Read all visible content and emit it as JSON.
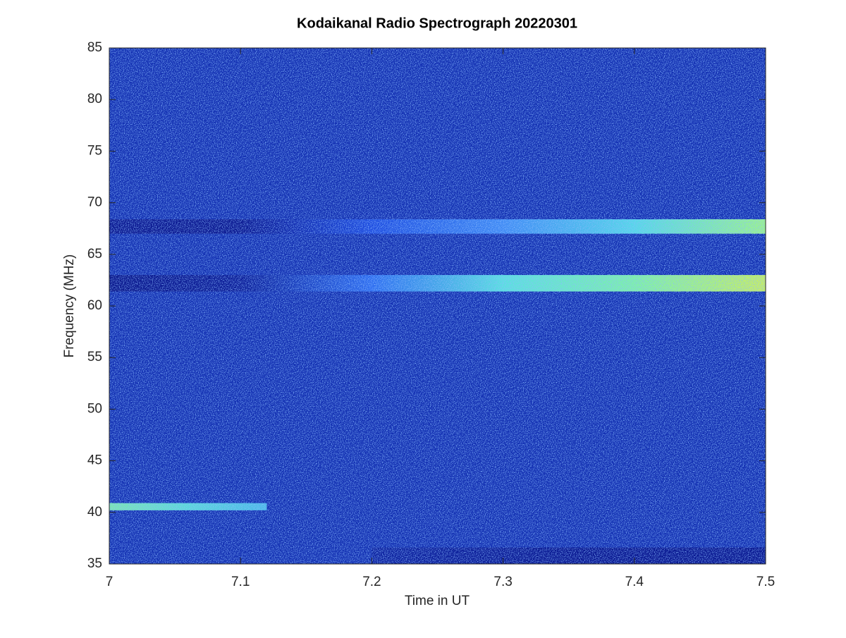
{
  "chart_data": {
    "type": "heatmap",
    "title": "Kodaikanal Radio Spectrograph  20220301",
    "x_label": "Time in UT",
    "y_label": "Frequency (MHz)",
    "xlim": [
      7,
      7.5
    ],
    "ylim": [
      35,
      85
    ],
    "xticks": [
      7,
      7.1,
      7.2,
      7.3,
      7.4,
      7.5
    ],
    "yticks": [
      35,
      40,
      45,
      50,
      55,
      60,
      65,
      70,
      75,
      80,
      85
    ],
    "background_color": "#1330b2",
    "bands": [
      {
        "x": [
          7,
          7.5
        ],
        "y": [
          67,
          68.4
        ],
        "colors": [
          "#0a1790",
          "#0a1790",
          "#1d4be0",
          "#3f8af5",
          "#55d8e8",
          "#9cf58a"
        ]
      },
      {
        "x": [
          7,
          7.5
        ],
        "y": [
          61.4,
          63
        ],
        "colors": [
          "#08148a",
          "#0b1c98",
          "#2d6cf0",
          "#5ae0e0",
          "#7ef2a8",
          "#c8f060"
        ]
      },
      {
        "x": [
          7,
          7.12
        ],
        "y": [
          40.2,
          40.9
        ],
        "colors": [
          "#7be8b0",
          "#5ad8d8",
          "#4ab8e8"
        ]
      },
      {
        "x": [
          7.2,
          7.5
        ],
        "y": [
          35,
          36.6
        ],
        "colors": [
          "#0d22a0",
          "#081690",
          "#081690"
        ]
      }
    ]
  }
}
